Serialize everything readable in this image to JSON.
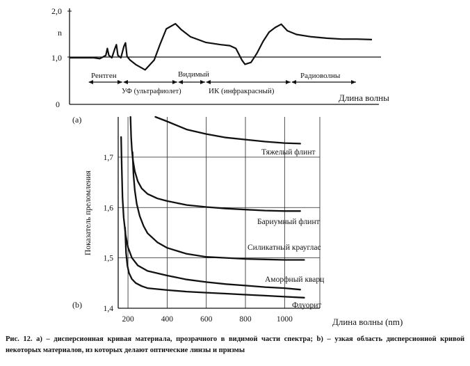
{
  "chart_data": [
    {
      "type": "line",
      "panel_label": "(a)",
      "title": "",
      "xlabel": "Длина волны",
      "ylabel": "n",
      "y_ticks": [
        "2,0",
        "1,0",
        "0"
      ],
      "ylim": [
        0,
        2.0
      ],
      "reference_line": 1.0,
      "regions": [
        {
          "name": "Рентген",
          "row": "top"
        },
        {
          "name": "Видимый",
          "row": "top"
        },
        {
          "name": "Радиоволны",
          "row": "top"
        },
        {
          "name": "УФ (ультрафиолет)",
          "row": "bottom"
        },
        {
          "name": "ИК (инфракрасный)",
          "row": "bottom"
        }
      ],
      "series": [
        {
          "name": "n",
          "x": [
            0,
            0.04,
            0.08,
            0.1,
            0.12,
            0.125,
            0.13,
            0.14,
            0.15,
            0.155,
            0.16,
            0.17,
            0.18,
            0.185,
            0.19,
            0.2,
            0.22,
            0.25,
            0.28,
            0.3,
            0.32,
            0.35,
            0.37,
            0.4,
            0.45,
            0.5,
            0.53,
            0.55,
            0.57,
            0.58,
            0.6,
            0.62,
            0.64,
            0.66,
            0.68,
            0.7,
            0.72,
            0.75,
            0.8,
            0.85,
            0.9,
            0.95,
            1.0
          ],
          "y": [
            1.0,
            1.0,
            1.0,
            0.98,
            1.05,
            1.2,
            1.05,
            1.0,
            1.2,
            1.28,
            1.05,
            1.0,
            1.25,
            1.32,
            1.03,
            0.95,
            0.85,
            0.74,
            0.95,
            1.3,
            1.62,
            1.73,
            1.6,
            1.45,
            1.33,
            1.28,
            1.26,
            1.2,
            0.95,
            0.86,
            0.9,
            1.1,
            1.35,
            1.55,
            1.65,
            1.72,
            1.58,
            1.5,
            1.45,
            1.42,
            1.4,
            1.4,
            1.39
          ]
        }
      ]
    },
    {
      "type": "line",
      "panel_label": "(b)",
      "title": "",
      "xlabel": "Длина волны (nm)",
      "ylabel": "Показатель преломления",
      "x_ticks": [
        200,
        400,
        600,
        800,
        1000
      ],
      "x_tick_labels": [
        "200",
        "400",
        "600",
        "800",
        "1000"
      ],
      "y_ticks": [
        1.4,
        1.5,
        1.6,
        1.7
      ],
      "y_tick_labels": [
        "1,4",
        "1,5",
        "1,6",
        "1,7"
      ],
      "xlim": [
        150,
        1180
      ],
      "ylim": [
        1.4,
        1.78
      ],
      "grid": true,
      "series": [
        {
          "name": "Тяжелый флинт",
          "x": [
            340,
            400,
            450,
            500,
            600,
            700,
            800,
            900,
            1000,
            1080
          ],
          "y": [
            1.78,
            1.771,
            1.763,
            1.755,
            1.746,
            1.739,
            1.735,
            1.731,
            1.728,
            1.727
          ]
        },
        {
          "name": "Бариумный флинт",
          "x": [
            213,
            216,
            220,
            225,
            235,
            250,
            270,
            300,
            350,
            400,
            500,
            600,
            700,
            800,
            900,
            1000,
            1080
          ],
          "y": [
            1.78,
            1.74,
            1.715,
            1.695,
            1.672,
            1.652,
            1.638,
            1.627,
            1.618,
            1.613,
            1.605,
            1.601,
            1.598,
            1.596,
            1.594,
            1.593,
            1.593
          ]
        },
        {
          "name": "Силикатный крауглас",
          "x": [
            223,
            228,
            235,
            245,
            260,
            280,
            300,
            350,
            400,
            500,
            600,
            700,
            800,
            900,
            1000,
            1100
          ],
          "y": [
            1.71,
            1.665,
            1.634,
            1.607,
            1.583,
            1.563,
            1.549,
            1.531,
            1.52,
            1.508,
            1.502,
            1.5,
            1.498,
            1.497,
            1.496,
            1.496
          ]
        },
        {
          "name": "Аморфный кварц",
          "x": [
            165,
            168,
            172,
            178,
            188,
            200,
            220,
            250,
            300,
            400,
            500,
            600,
            700,
            800,
            900,
            1000,
            1080
          ],
          "y": [
            1.74,
            1.68,
            1.62,
            1.58,
            1.545,
            1.521,
            1.5,
            1.485,
            1.474,
            1.465,
            1.457,
            1.452,
            1.448,
            1.445,
            1.442,
            1.44,
            1.437
          ]
        },
        {
          "name": "Флуорит",
          "x": [
            185,
            190,
            197,
            205,
            220,
            240,
            270,
            300,
            350,
            400,
            500,
            600,
            700,
            800,
            900,
            1000,
            1100
          ],
          "y": [
            1.56,
            1.51,
            1.485,
            1.47,
            1.458,
            1.45,
            1.444,
            1.44,
            1.438,
            1.436,
            1.433,
            1.431,
            1.429,
            1.427,
            1.425,
            1.423,
            1.421
          ]
        }
      ]
    }
  ],
  "caption": "Рис. 12. а) – дисперсионная кривая материала, прозрачного в видимой части спектра; b) – узкая область дисперсионной кривой некоторых материалов, из которых делают оптические линзы и призмы"
}
